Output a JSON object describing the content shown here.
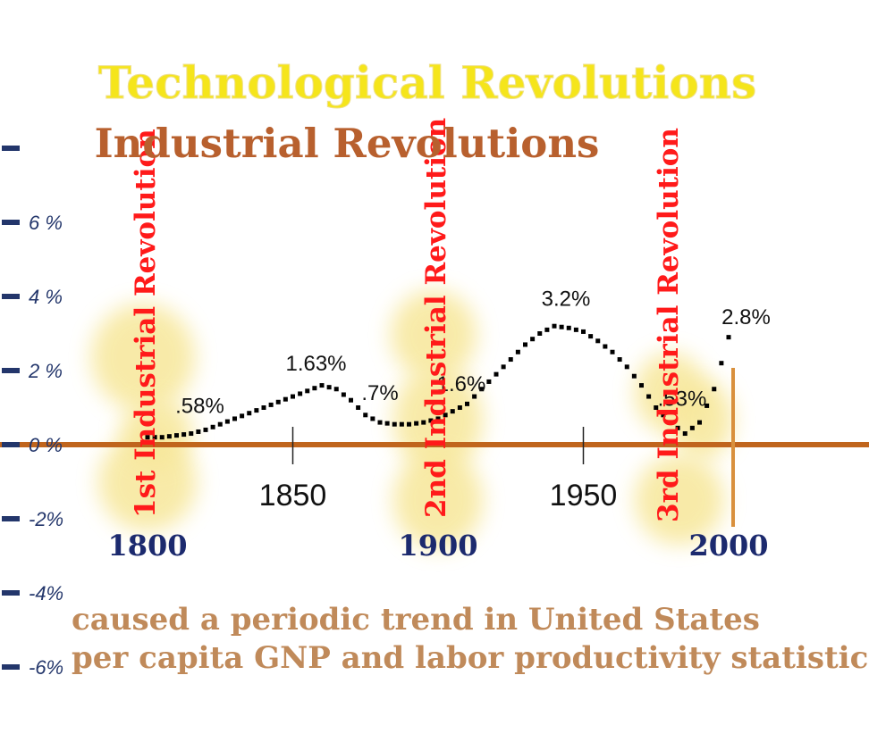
{
  "chart_data": {
    "type": "line",
    "title": "Technological Revolutions",
    "subtitle": "Industrial Revolutions",
    "caption_lines": [
      "caused a periodic trend in United States",
      "per capita GNP and labor productivity statistics"
    ],
    "x_ticks": [
      {
        "year": 1800,
        "label": "1800",
        "style": "bold"
      },
      {
        "year": 1850,
        "label": "1850",
        "style": "plain"
      },
      {
        "year": 1900,
        "label": "1900",
        "style": "bold"
      },
      {
        "year": 1950,
        "label": "1950",
        "style": "plain"
      },
      {
        "year": 2000,
        "label": "2000",
        "style": "bold"
      }
    ],
    "y_ticks": [
      {
        "value": 6,
        "label": "6 %"
      },
      {
        "value": 4,
        "label": "4 %"
      },
      {
        "value": 2,
        "label": "2 %"
      },
      {
        "value": 0,
        "label": "0 %"
      },
      {
        "value": -2,
        "label": "-2%"
      },
      {
        "value": -4,
        "label": "-4%"
      },
      {
        "value": -6,
        "label": "-6%"
      }
    ],
    "ylim": [
      -6,
      8
    ],
    "revolutions": [
      {
        "year": 1800,
        "label": "1st Industrial Revolution"
      },
      {
        "year": 1900,
        "label": "2nd Industrial Revolution"
      },
      {
        "year": 1980,
        "label": "3rd Industrial Revolution"
      }
    ],
    "series": [
      {
        "x": [
          1800,
          1805,
          1810,
          1815,
          1820,
          1825,
          1830,
          1835,
          1840,
          1845,
          1850,
          1855,
          1860,
          1865,
          1870,
          1875,
          1880,
          1885,
          1890,
          1895,
          1900,
          1905,
          1910,
          1915,
          1920,
          1925,
          1930,
          1935,
          1940,
          1945,
          1950,
          1955,
          1960,
          1965,
          1970,
          1975,
          1980,
          1985,
          1990,
          1995,
          2000
        ],
        "y": [
          0.2,
          0.2,
          0.25,
          0.3,
          0.4,
          0.55,
          0.7,
          0.85,
          1.0,
          1.15,
          1.3,
          1.45,
          1.6,
          1.5,
          1.2,
          0.8,
          0.6,
          0.55,
          0.55,
          0.6,
          0.7,
          0.9,
          1.1,
          1.5,
          1.9,
          2.3,
          2.7,
          3.0,
          3.2,
          3.15,
          3.05,
          2.8,
          2.5,
          2.1,
          1.6,
          1.0,
          0.6,
          0.3,
          0.6,
          1.5,
          2.9
        ]
      }
    ],
    "annotations": [
      {
        "text": ".58%",
        "x": 1818,
        "y": 0.85
      },
      {
        "text": "1.63%",
        "x": 1858,
        "y": 2.0
      },
      {
        "text": ".7%",
        "x": 1880,
        "y": 1.2
      },
      {
        "text": "1.6%",
        "x": 1908,
        "y": 1.45
      },
      {
        "text": "3.2%",
        "x": 1944,
        "y": 3.75
      },
      {
        "text": ".53%",
        "x": 1984,
        "y": 1.05
      },
      {
        "text": "2.8%",
        "x": 2006,
        "y": 3.25
      }
    ],
    "colors": {
      "title": "#f5e51b",
      "subtitle": "#b8602e",
      "caption": "#c08a5a",
      "revolution_label": "#ff1a1a",
      "glow": "#f7e79a",
      "axis_line": "#c0651d",
      "year_bold": "#1c2a6e",
      "y_tick": "#23366b",
      "series": "#000000",
      "orange_marker": "#d9903c"
    }
  }
}
